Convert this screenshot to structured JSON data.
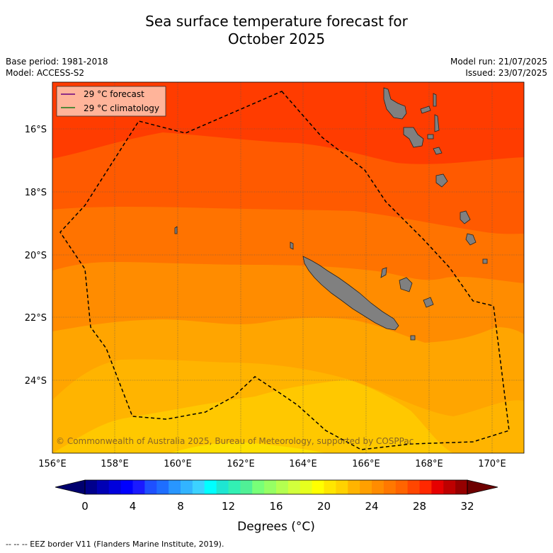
{
  "title_line1": "Sea surface temperature forecast for",
  "title_line2": "October 2025",
  "base_period": "Base period: 1981-2018",
  "model": "Model: ACCESS-S2",
  "model_run": "Model run: 21/07/2025",
  "issued": "Issued: 23/07/2025",
  "legend": {
    "forecast_label": "29 °C  forecast",
    "forecast_color": "#6a0080",
    "climatology_label": "29 °C  climatology",
    "climatology_color": "#1a7a1a"
  },
  "lat_labels": [
    "16°S",
    "18°S",
    "20°S",
    "22°S",
    "24°S"
  ],
  "lon_labels": [
    "156°E",
    "158°E",
    "160°E",
    "162°E",
    "164°E",
    "166°E",
    "168°E",
    "170°E"
  ],
  "copyright": "© Commonwealth of Australia 2025, Bureau of Meteorology, supported by COSPPac",
  "colorbar": {
    "ticks": [
      "0",
      "4",
      "8",
      "12",
      "16",
      "20",
      "24",
      "28",
      "32"
    ],
    "label": "Degrees (°C)",
    "colors": [
      "#00008c",
      "#0000b4",
      "#0000dc",
      "#0000ff",
      "#1a1aff",
      "#1e50ff",
      "#1e6eff",
      "#2896ff",
      "#32b4ff",
      "#3cd2ff",
      "#00ffff",
      "#1ee6d2",
      "#32f0b4",
      "#50f096",
      "#78ff78",
      "#96ff64",
      "#b4ff50",
      "#d2ff3c",
      "#e6ff1e",
      "#ffff00",
      "#ffe600",
      "#ffd200",
      "#ffb400",
      "#ffa000",
      "#ff8c00",
      "#ff7800",
      "#ff6400",
      "#ff4600",
      "#ff2800",
      "#e60000",
      "#be0000",
      "#960000"
    ],
    "under_color": "#00006e",
    "over_color": "#6e0000"
  },
  "sst_colors": {
    "band_28_29": "#ff3c00",
    "band_27_28": "#ff5a00",
    "band_26_27": "#ff7300",
    "band_25_26": "#ff8c00",
    "band_24_25": "#ffa500",
    "band_23_24": "#ffb400",
    "band_22_23": "#ffc800",
    "band_21_22": "#ffe000"
  },
  "footer": "--  --  -- EEZ border V11 (Flanders Marine Institute, 2019)."
}
